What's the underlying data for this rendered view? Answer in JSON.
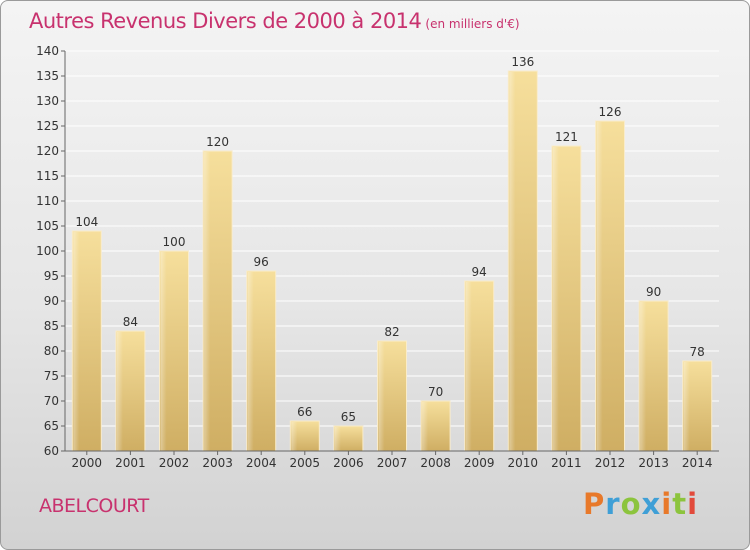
{
  "header": {
    "title": "Autres Revenus Divers de 2000 à 2014",
    "subtitle": "(en milliers d'€)"
  },
  "commune": "ABELCOURT",
  "logo": {
    "text": "Proxiti"
  },
  "colors": {
    "title": "#c8326e",
    "bar_light": "#f6df9c",
    "bar_dark": "#d4b468",
    "grid": "#ffffff"
  },
  "chart_data": {
    "type": "bar",
    "title": "Autres Revenus Divers de 2000 à 2014",
    "subtitle": "(en milliers d'€)",
    "categories": [
      "2000",
      "2001",
      "2002",
      "2003",
      "2004",
      "2005",
      "2006",
      "2007",
      "2008",
      "2009",
      "2010",
      "2011",
      "2012",
      "2013",
      "2014"
    ],
    "values": [
      104,
      84,
      100,
      120,
      96,
      66,
      65,
      82,
      70,
      94,
      136,
      121,
      126,
      90,
      78
    ],
    "ylim": [
      60,
      140
    ],
    "yticks": [
      60,
      65,
      70,
      75,
      80,
      85,
      90,
      95,
      100,
      105,
      110,
      115,
      120,
      125,
      130,
      135,
      140
    ],
    "grid": true,
    "legend": "none"
  }
}
